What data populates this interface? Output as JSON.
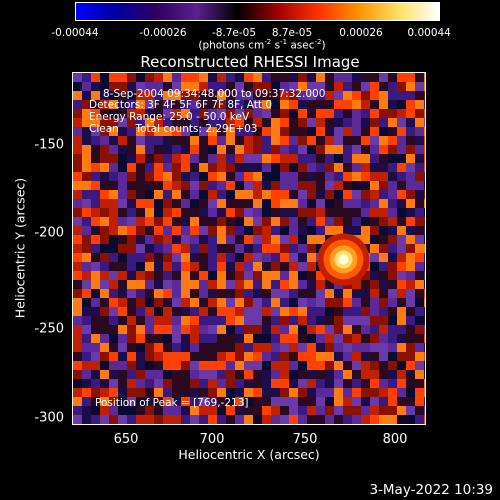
{
  "window": {
    "title": "Reconstructed RHESSI Image",
    "date_stamp": "3-May-2022 10:39"
  },
  "colorbar": {
    "tick_labels": [
      "-0.00044",
      "-0.00026",
      "-8.7e-05",
      "8.7e-05",
      "0.00026",
      "0.00044"
    ],
    "tick_values": [
      -0.00044,
      -0.00026,
      -8.7e-05,
      8.7e-05,
      0.00026,
      0.00044
    ],
    "units_main": "(photons cm",
    "units_exp1": "-2",
    "units_s": " s",
    "units_exp2": "-1",
    "units_as": " asec",
    "units_exp3": "-2",
    "units_close": ")",
    "colors": [
      "#0000ff",
      "#0000a0",
      "#300060",
      "#5a2090",
      "#000000",
      "#a00000",
      "#ff3000",
      "#ff9000",
      "#ffe060",
      "#ffffff"
    ]
  },
  "annotations": {
    "time_range": "8-Sep-2004 09:34:48.000 to 09:37:32.000",
    "detectors": "Detectors: 3F 4F 5F 6F 7F 8F, Att 0",
    "energy_range": "Energy Range: 25.0 - 50.0 keV",
    "method": "Clean     Total counts: 2.29E+03",
    "peak_position": "Position of Peak = [769,-213]"
  },
  "axes": {
    "xlabel": "Heliocentric X (arcsec)",
    "ylabel": "Heliocentric Y (arcsec)",
    "x_ticks": [
      "650",
      "700",
      "750",
      "800"
    ],
    "x_tick_values": [
      650,
      700,
      750,
      800
    ],
    "y_ticks": [
      "-150",
      "-200",
      "-250",
      "-300"
    ],
    "y_tick_values": [
      -150,
      -200,
      -250,
      -300
    ],
    "xlim": [
      620,
      815
    ],
    "ylim": [
      -305,
      -110
    ]
  },
  "image": {
    "peak_x": 769,
    "peak_y": -213
  }
}
